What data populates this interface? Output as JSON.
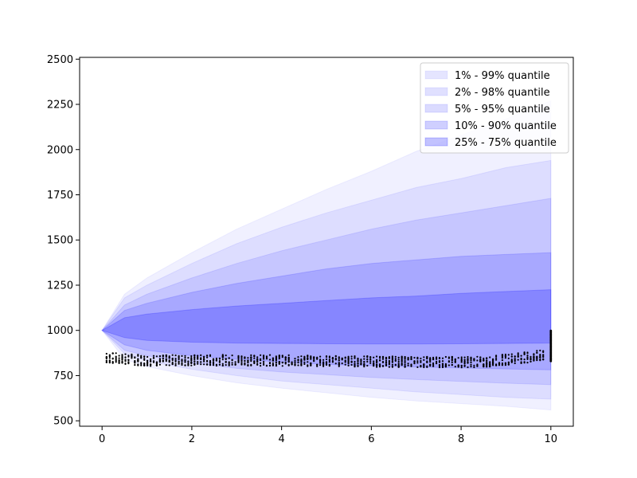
{
  "chart_data": {
    "type": "area",
    "xlim": [
      -0.5,
      10.5
    ],
    "ylim": [
      470,
      2510
    ],
    "x_ticks": [
      0,
      2,
      4,
      6,
      8,
      10
    ],
    "y_ticks": [
      500,
      750,
      1000,
      1250,
      1500,
      1750,
      2000,
      2250,
      2500
    ],
    "x_tick_labels": [
      "0",
      "2",
      "4",
      "6",
      "8",
      "10"
    ],
    "y_tick_labels": [
      "500",
      "750",
      "1000",
      "1250",
      "1500",
      "1750",
      "2000",
      "2250",
      "2500"
    ],
    "grid": false,
    "legend_position": "top-right",
    "band_color": "#0000ff",
    "start_value": 1000,
    "series": [
      {
        "name": "1% - 99% quantile",
        "alpha": 0.06,
        "x": [
          0,
          0.5,
          1,
          2,
          3,
          4,
          5,
          6,
          7,
          8,
          9,
          10
        ],
        "lower": [
          1000,
          840,
          800,
          750,
          710,
          680,
          655,
          630,
          610,
          595,
          580,
          560
        ],
        "upper": [
          1000,
          1200,
          1290,
          1430,
          1560,
          1670,
          1780,
          1880,
          1990,
          2080,
          2170,
          2270
        ]
      },
      {
        "name": "2% - 98% quantile",
        "alpha": 0.08,
        "x": [
          0,
          0.5,
          1,
          2,
          3,
          4,
          5,
          6,
          7,
          8,
          9,
          10
        ],
        "lower": [
          1000,
          870,
          830,
          785,
          750,
          720,
          700,
          680,
          660,
          645,
          630,
          620
        ],
        "upper": [
          1000,
          1180,
          1250,
          1370,
          1480,
          1570,
          1650,
          1720,
          1790,
          1840,
          1900,
          1940
        ]
      },
      {
        "name": "5% - 95% quantile",
        "alpha": 0.1,
        "x": [
          0,
          0.5,
          1,
          2,
          3,
          4,
          5,
          6,
          7,
          8,
          9,
          10
        ],
        "lower": [
          1000,
          890,
          860,
          820,
          790,
          770,
          755,
          740,
          728,
          718,
          708,
          700
        ],
        "upper": [
          1000,
          1140,
          1200,
          1290,
          1370,
          1440,
          1500,
          1560,
          1610,
          1650,
          1690,
          1730
        ]
      },
      {
        "name": "10% - 90% quantile",
        "alpha": 0.15,
        "x": [
          0,
          0.5,
          1,
          2,
          3,
          4,
          5,
          6,
          7,
          8,
          9,
          10
        ],
        "lower": [
          1000,
          920,
          890,
          860,
          840,
          825,
          812,
          805,
          798,
          792,
          787,
          782
        ],
        "upper": [
          1000,
          1110,
          1150,
          1210,
          1260,
          1300,
          1340,
          1370,
          1390,
          1410,
          1420,
          1430
        ]
      },
      {
        "name": "25% - 75% quantile",
        "alpha": 0.2,
        "x": [
          0,
          0.5,
          1,
          2,
          3,
          4,
          5,
          6,
          7,
          8,
          9,
          10
        ],
        "lower": [
          1000,
          960,
          945,
          935,
          930,
          928,
          926,
          925,
          925,
          926,
          928,
          930
        ],
        "upper": [
          1000,
          1070,
          1090,
          1115,
          1135,
          1150,
          1165,
          1180,
          1190,
          1205,
          1215,
          1225
        ]
      }
    ],
    "scatter_summary": {
      "description_color": "#000000",
      "x_range": [
        0.1,
        10.0
      ],
      "y_center": 830,
      "y_spread": [
        750,
        920
      ],
      "end_x": 10.0,
      "end_range": [
        830,
        1000
      ]
    }
  }
}
